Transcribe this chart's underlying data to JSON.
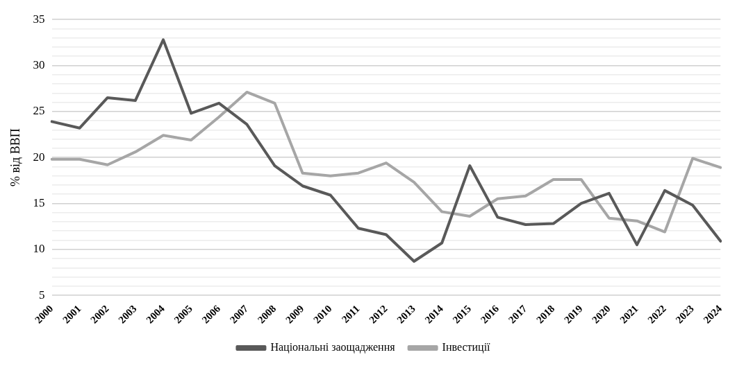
{
  "chart_data": {
    "type": "line",
    "ylabel": "% від ВВП",
    "categories": [
      "2000",
      "2001",
      "2002",
      "2003",
      "2004",
      "2005",
      "2006",
      "2007",
      "2008",
      "2009",
      "2010",
      "2011",
      "2012",
      "2013",
      "2014",
      "2015",
      "2016",
      "2017",
      "2018",
      "2019",
      "2020",
      "2021",
      "2022",
      "2023",
      "2024"
    ],
    "series": [
      {
        "name": "Національні заощадження",
        "color": "#595959",
        "values": [
          23.9,
          23.2,
          26.5,
          26.2,
          32.8,
          24.8,
          25.9,
          23.6,
          19.1,
          16.9,
          15.9,
          12.3,
          11.6,
          8.7,
          10.7,
          19.1,
          13.5,
          12.7,
          12.8,
          15.0,
          16.1,
          10.5,
          16.4,
          14.8,
          10.9
        ]
      },
      {
        "name": "Інвестиції",
        "color": "#a6a6a6",
        "values": [
          19.8,
          19.8,
          19.2,
          20.6,
          22.4,
          21.9,
          24.4,
          27.1,
          25.9,
          18.3,
          18.0,
          18.3,
          19.4,
          17.3,
          14.1,
          13.6,
          15.5,
          15.8,
          17.6,
          17.6,
          13.4,
          13.1,
          11.9,
          19.9,
          18.9
        ]
      }
    ],
    "ylim": [
      5,
      35
    ],
    "yticks": [
      5,
      {
        "value": 6,
        "label": null
      },
      {
        "value": 7,
        "label": null
      },
      {
        "value": 8,
        "label": null
      },
      {
        "value": 9,
        "label": null
      },
      10,
      {
        "value": 11,
        "label": null
      },
      {
        "value": 12,
        "label": null
      },
      {
        "value": 13,
        "label": null
      },
      {
        "value": 14,
        "label": null
      },
      15,
      {
        "value": 16,
        "label": null
      },
      {
        "value": 17,
        "label": null
      },
      {
        "value": 18,
        "label": null
      },
      {
        "value": 19,
        "label": null
      },
      20,
      {
        "value": 21,
        "label": null
      },
      {
        "value": 22,
        "label": null
      },
      {
        "value": 23,
        "label": null
      },
      {
        "value": 24,
        "label": null
      },
      25,
      {
        "value": 26,
        "label": null
      },
      {
        "value": 27,
        "label": null
      },
      {
        "value": 28,
        "label": null
      },
      {
        "value": 29,
        "label": null
      },
      30,
      {
        "value": 31,
        "label": null
      },
      {
        "value": 32,
        "label": null
      },
      {
        "value": 33,
        "label": null
      },
      {
        "value": 34,
        "label": null
      },
      35
    ],
    "grid": "y",
    "legend": "bottom",
    "marker": "none",
    "line_style": "solid"
  }
}
